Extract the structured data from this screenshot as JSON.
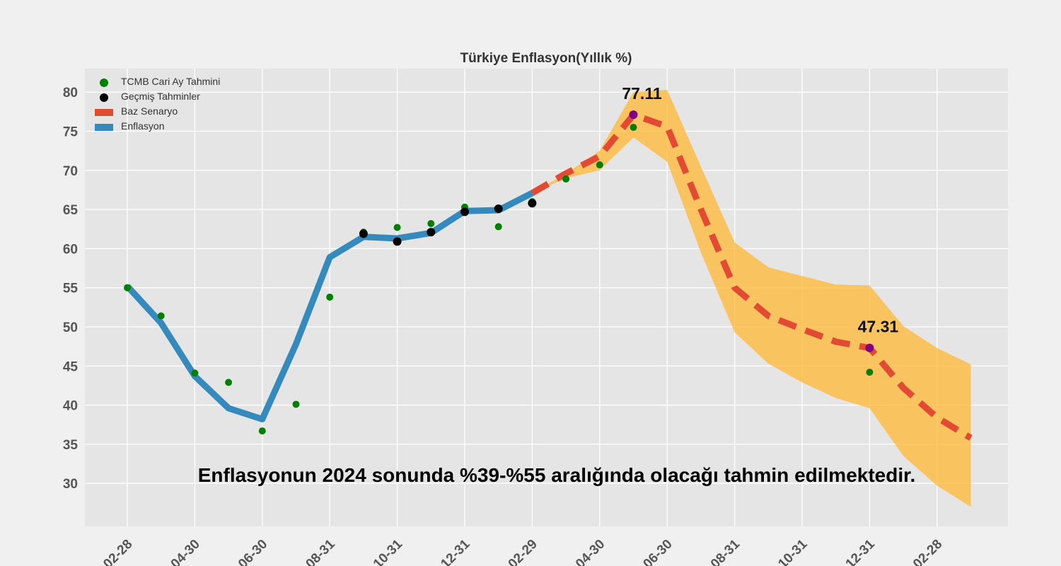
{
  "chart_data": {
    "type": "line",
    "title": "Türkiye Enflasyon(Yıllık %)",
    "xlabel": "",
    "ylabel": "",
    "ylim": [
      24.5,
      83
    ],
    "yticks": [
      30,
      35,
      40,
      45,
      50,
      55,
      60,
      65,
      70,
      75,
      80
    ],
    "x_months": [
      "2023-02-28",
      "2023-03-31",
      "2023-04-30",
      "2023-05-31",
      "2023-06-30",
      "2023-07-31",
      "2023-08-31",
      "2023-09-30",
      "2023-10-31",
      "2023-11-30",
      "2023-12-31",
      "2024-01-31",
      "2024-02-29",
      "2024-03-31",
      "2024-04-30",
      "2024-05-31",
      "2024-06-30",
      "2024-07-31",
      "2024-08-31",
      "2024-09-30",
      "2024-10-31",
      "2024-11-30",
      "2024-12-31",
      "2025-01-31",
      "2025-02-28",
      "2025-03-31"
    ],
    "xtick_labels": [
      {
        "index": 0,
        "label": "-02-28"
      },
      {
        "index": 2,
        "label": "-04-30"
      },
      {
        "index": 4,
        "label": "-06-30"
      },
      {
        "index": 6,
        "label": "-08-31"
      },
      {
        "index": 8,
        "label": "-10-31"
      },
      {
        "index": 10,
        "label": "-12-31"
      },
      {
        "index": 12,
        "label": "-02-29"
      },
      {
        "index": 14,
        "label": "-04-30"
      },
      {
        "index": 16,
        "label": "-06-30"
      },
      {
        "index": 18,
        "label": "-08-31"
      },
      {
        "index": 20,
        "label": "-10-31"
      },
      {
        "index": 22,
        "label": "-12-31"
      },
      {
        "index": 24,
        "label": "-02-28"
      }
    ],
    "grid": true,
    "legend_placement": "top-left",
    "series": [
      {
        "name": "Enflasyon",
        "kind": "line",
        "color": "#348abd",
        "points": [
          {
            "i": 0,
            "y": 55.2
          },
          {
            "i": 1,
            "y": 50.5
          },
          {
            "i": 2,
            "y": 43.7
          },
          {
            "i": 3,
            "y": 39.6
          },
          {
            "i": 4,
            "y": 38.2
          },
          {
            "i": 5,
            "y": 47.8
          },
          {
            "i": 6,
            "y": 58.9
          },
          {
            "i": 7,
            "y": 61.5
          },
          {
            "i": 8,
            "y": 61.3
          },
          {
            "i": 9,
            "y": 62.0
          },
          {
            "i": 10,
            "y": 64.8
          },
          {
            "i": 11,
            "y": 64.9
          },
          {
            "i": 12,
            "y": 67.1
          }
        ]
      },
      {
        "name": "Baz Senaryo",
        "kind": "dashed-line",
        "color": "#e24a33",
        "points": [
          {
            "i": 12,
            "y": 67.1
          },
          {
            "i": 13,
            "y": 69.6
          },
          {
            "i": 14,
            "y": 71.8
          },
          {
            "i": 15,
            "y": 77.1
          },
          {
            "i": 16,
            "y": 75.6
          },
          {
            "i": 17,
            "y": 65.0
          },
          {
            "i": 18,
            "y": 55.0
          },
          {
            "i": 19,
            "y": 51.4
          },
          {
            "i": 20,
            "y": 49.7
          },
          {
            "i": 21,
            "y": 48.1
          },
          {
            "i": 22,
            "y": 47.3
          },
          {
            "i": 23,
            "y": 42.2
          },
          {
            "i": 24,
            "y": 38.4
          },
          {
            "i": 25,
            "y": 35.8
          }
        ]
      },
      {
        "name": "TCMB Cari Ay Tahmini",
        "kind": "scatter",
        "color": "#008000",
        "points": [
          {
            "i": 0,
            "y": 55.0
          },
          {
            "i": 1,
            "y": 51.4
          },
          {
            "i": 2,
            "y": 44.1
          },
          {
            "i": 3,
            "y": 42.9
          },
          {
            "i": 4,
            "y": 36.7
          },
          {
            "i": 5,
            "y": 40.1
          },
          {
            "i": 6,
            "y": 53.8
          },
          {
            "i": 7,
            "y": 62.1
          },
          {
            "i": 8,
            "y": 62.7
          },
          {
            "i": 9,
            "y": 63.2
          },
          {
            "i": 10,
            "y": 65.3
          },
          {
            "i": 11,
            "y": 62.8
          },
          {
            "i": 12,
            "y": 66.0
          },
          {
            "i": 13,
            "y": 68.9
          },
          {
            "i": 14,
            "y": 70.7
          },
          {
            "i": 15,
            "y": 75.5
          },
          {
            "i": 22,
            "y": 44.2
          }
        ]
      },
      {
        "name": "Geçmiş Tahminler",
        "kind": "scatter",
        "color": "#000000",
        "points": [
          {
            "i": 7,
            "y": 61.9
          },
          {
            "i": 8,
            "y": 60.9
          },
          {
            "i": 9,
            "y": 62.1
          },
          {
            "i": 10,
            "y": 64.7
          },
          {
            "i": 11,
            "y": 65.1
          },
          {
            "i": 12,
            "y": 65.8
          }
        ]
      }
    ],
    "forecast_band": {
      "color": "#ffb733",
      "upper": [
        {
          "i": 12,
          "y": 67.1
        },
        {
          "i": 13,
          "y": 69.6
        },
        {
          "i": 14,
          "y": 72.5
        },
        {
          "i": 15,
          "y": 80.0
        },
        {
          "i": 16,
          "y": 80.3
        },
        {
          "i": 17,
          "y": 70.5
        },
        {
          "i": 18,
          "y": 60.8
        },
        {
          "i": 19,
          "y": 57.6
        },
        {
          "i": 20,
          "y": 56.5
        },
        {
          "i": 21,
          "y": 55.4
        },
        {
          "i": 22,
          "y": 55.3
        },
        {
          "i": 23,
          "y": 50.1
        },
        {
          "i": 24,
          "y": 47.3
        },
        {
          "i": 25,
          "y": 45.2
        }
      ],
      "lower": [
        {
          "i": 12,
          "y": 67.1
        },
        {
          "i": 13,
          "y": 69.0
        },
        {
          "i": 14,
          "y": 70.0
        },
        {
          "i": 15,
          "y": 74.2
        },
        {
          "i": 16,
          "y": 71.1
        },
        {
          "i": 17,
          "y": 59.5
        },
        {
          "i": 18,
          "y": 49.3
        },
        {
          "i": 19,
          "y": 45.3
        },
        {
          "i": 20,
          "y": 42.9
        },
        {
          "i": 21,
          "y": 40.9
        },
        {
          "i": 22,
          "y": 39.6
        },
        {
          "i": 23,
          "y": 33.5
        },
        {
          "i": 24,
          "y": 29.7
        },
        {
          "i": 25,
          "y": 27.0
        }
      ]
    },
    "highlights": [
      {
        "i": 15,
        "y": 77.11,
        "label": "77.11",
        "color": "#800080"
      },
      {
        "i": 22,
        "y": 47.31,
        "label": "47.31",
        "color": "#800080"
      }
    ],
    "annotation": "Enflasyonun 2024 sonunda %39-%55 aralığında olacağı tahmin edilmektedir.",
    "legend": [
      {
        "label": "TCMB Cari Ay Tahmini",
        "marker": "dot",
        "color": "#008000"
      },
      {
        "label": "Geçmiş Tahminler",
        "marker": "dot",
        "color": "#000000"
      },
      {
        "label": "Baz Senaryo",
        "marker": "patch",
        "color": "#e24a33"
      },
      {
        "label": "Enflasyon",
        "marker": "patch",
        "color": "#348abd"
      }
    ]
  }
}
